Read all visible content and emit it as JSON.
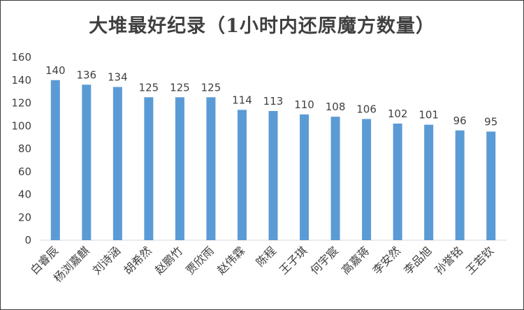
{
  "chart_data": {
    "type": "bar",
    "title": "大堆最好纪录（1小时内还原魔方数量）",
    "categories": [
      "白睿辰",
      "杨浏嘉麒",
      "刘诗涵",
      "胡希然",
      "赵鹏竹",
      "贾欣雨",
      "赵伟霖",
      "陈程",
      "王子琪",
      "何宇宸",
      "高嘉蒋",
      "李安然",
      "李品旭",
      "孙誉铭",
      "王若钦"
    ],
    "values": [
      140,
      136,
      134,
      125,
      125,
      125,
      114,
      113,
      110,
      108,
      106,
      102,
      101,
      96,
      95
    ],
    "ylim": [
      0,
      160
    ],
    "yticks": [
      0,
      20,
      40,
      60,
      80,
      100,
      120,
      140,
      160
    ],
    "grid": false,
    "legend": "none",
    "bar_color": "#5B9BD5",
    "text_color": "#404040",
    "axis_color": "#D9D9D9"
  }
}
